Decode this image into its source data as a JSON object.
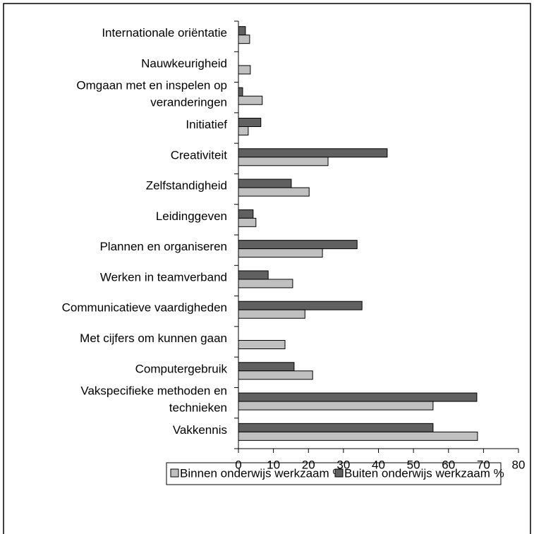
{
  "chart_data": {
    "type": "bar",
    "orientation": "horizontal",
    "categories": [
      [
        "Internationale oriëntatie"
      ],
      [
        "Nauwkeurigheid"
      ],
      [
        "Omgaan met en inspelen op",
        "veranderingen"
      ],
      [
        "Initiatief"
      ],
      [
        "Creativiteit"
      ],
      [
        "Zelfstandigheid"
      ],
      [
        "Leidinggeven"
      ],
      [
        "Plannen en organiseren"
      ],
      [
        "Werken in teamverband"
      ],
      [
        "Communicatieve vaardigheden"
      ],
      [
        "Met cijfers om kunnen gaan"
      ],
      [
        "Computergebruik"
      ],
      [
        "Vakspecifieke methoden en",
        "technieken"
      ],
      [
        "Vakkennis"
      ]
    ],
    "series": [
      {
        "name": "Binnen onderwijs werkzaam %",
        "color": "#c0c0c0",
        "values": [
          3.2,
          3.4,
          6.8,
          2.8,
          25.6,
          20.2,
          5.0,
          24.0,
          15.5,
          19.0,
          13.3,
          21.2,
          55.6,
          68.3
        ]
      },
      {
        "name": "Buiten onderwijs werkzaam %",
        "color": "#606060",
        "values": [
          2.0,
          0,
          1.2,
          6.4,
          42.5,
          15.1,
          4.2,
          33.9,
          8.5,
          35.3,
          0,
          15.9,
          68.1,
          55.6
        ]
      }
    ],
    "xlim": [
      0,
      80
    ],
    "xticks": [
      0,
      10,
      20,
      30,
      40,
      50,
      60,
      70,
      80
    ],
    "legend": "bottom"
  }
}
